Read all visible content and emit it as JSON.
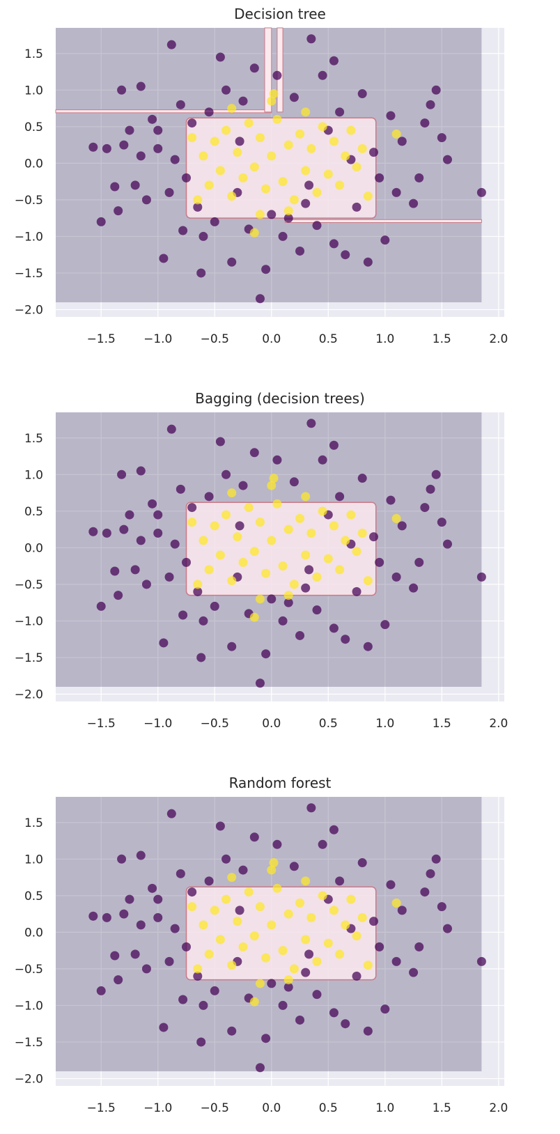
{
  "chart_data": [
    {
      "type": "scatter",
      "title": "Decision tree",
      "xlim": [
        -1.9,
        2.05
      ],
      "ylim": [
        -2.1,
        1.85
      ],
      "x_ticks": [
        "-1.5",
        "-1.0",
        "-0.5",
        "0.0",
        "0.5",
        "1.0",
        "1.5",
        "2.0"
      ],
      "y_ticks": [
        "1.5",
        "1.0",
        "0.5",
        "0.0",
        "-0.5",
        "-1.0",
        "-1.5",
        "-2.0"
      ],
      "grid": true,
      "background_region": {
        "x": [
          -1.9,
          1.85
        ],
        "y": [
          -1.9,
          1.85
        ],
        "color": "#3b2d5c"
      },
      "decision_boundary": {
        "x": [
          -0.75,
          0.92
        ],
        "y": [
          -0.75,
          0.62
        ],
        "fill": "#fbe9ee",
        "edge": "#c97a86"
      }
    },
    {
      "type": "scatter",
      "title": "Bagging (decision trees)",
      "xlim": [
        -1.9,
        2.05
      ],
      "ylim": [
        -2.1,
        1.85
      ],
      "x_ticks": [
        "-1.5",
        "-1.0",
        "-0.5",
        "0.0",
        "0.5",
        "1.0",
        "1.5",
        "2.0"
      ],
      "y_ticks": [
        "1.5",
        "1.0",
        "0.5",
        "0.0",
        "-0.5",
        "-1.0",
        "-1.5",
        "-2.0"
      ],
      "grid": true,
      "background_region": {
        "x": [
          -1.9,
          1.85
        ],
        "y": [
          -1.9,
          1.85
        ],
        "color": "#3b2d5c"
      },
      "decision_boundary": {
        "x": [
          -0.75,
          0.92
        ],
        "y": [
          -0.65,
          0.62
        ],
        "fill": "#fbe9ee",
        "edge": "#c97a86"
      }
    },
    {
      "type": "scatter",
      "title": "Random forest",
      "xlim": [
        -1.9,
        2.05
      ],
      "ylim": [
        -2.1,
        1.85
      ],
      "x_ticks": [
        "-1.5",
        "-1.0",
        "-0.5",
        "0.0",
        "0.5",
        "1.0",
        "1.5",
        "2.0"
      ],
      "y_ticks": [
        "1.5",
        "1.0",
        "0.5",
        "0.0",
        "-0.5",
        "-1.0",
        "-1.5",
        "-2.0"
      ],
      "grid": true,
      "background_region": {
        "x": [
          -1.9,
          1.85
        ],
        "y": [
          -1.9,
          1.85
        ],
        "color": "#3b2d5c"
      },
      "decision_boundary": {
        "x": [
          -0.75,
          0.92
        ],
        "y": [
          -0.65,
          0.62
        ],
        "fill": "#fbe9ee",
        "edge": "#c97a86"
      }
    }
  ],
  "points": {
    "class_0_color": "#440154",
    "class_1_color": "#fde725",
    "class_0": [
      [
        -1.5,
        -0.8
      ],
      [
        -1.45,
        0.2
      ],
      [
        -1.35,
        -0.65
      ],
      [
        -1.3,
        0.25
      ],
      [
        -1.25,
        0.45
      ],
      [
        -1.2,
        -0.3
      ],
      [
        -1.15,
        0.1
      ],
      [
        -1.1,
        -0.5
      ],
      [
        -1.05,
        0.6
      ],
      [
        -1.0,
        0.2
      ],
      [
        -0.95,
        -1.3
      ],
      [
        -0.9,
        -0.4
      ],
      [
        -0.85,
        0.05
      ],
      [
        -0.8,
        0.8
      ],
      [
        -0.75,
        -0.2
      ],
      [
        -0.7,
        0.55
      ],
      [
        -0.65,
        -0.6
      ],
      [
        -0.6,
        -1.0
      ],
      [
        -0.55,
        0.7
      ],
      [
        -0.5,
        -0.8
      ],
      [
        -0.45,
        1.45
      ],
      [
        -0.4,
        1.0
      ],
      [
        -0.35,
        -1.35
      ],
      [
        -0.3,
        -0.4
      ],
      [
        -0.25,
        0.85
      ],
      [
        -0.2,
        -0.9
      ],
      [
        -0.15,
        1.3
      ],
      [
        -0.1,
        -1.85
      ],
      [
        -0.05,
        -1.45
      ],
      [
        0.0,
        -0.7
      ],
      [
        0.05,
        1.2
      ],
      [
        0.1,
        -1.0
      ],
      [
        0.15,
        -0.75
      ],
      [
        0.2,
        0.9
      ],
      [
        0.25,
        -1.2
      ],
      [
        0.3,
        -0.55
      ],
      [
        0.35,
        1.7
      ],
      [
        0.4,
        -0.85
      ],
      [
        0.45,
        1.2
      ],
      [
        0.5,
        0.45
      ],
      [
        0.55,
        -1.1
      ],
      [
        0.6,
        0.7
      ],
      [
        0.65,
        -1.25
      ],
      [
        0.7,
        0.05
      ],
      [
        0.75,
        -0.6
      ],
      [
        0.8,
        0.95
      ],
      [
        0.85,
        -1.35
      ],
      [
        0.9,
        0.15
      ],
      [
        1.0,
        -1.05
      ],
      [
        1.05,
        0.65
      ],
      [
        1.1,
        -0.4
      ],
      [
        1.15,
        0.3
      ],
      [
        1.25,
        -0.55
      ],
      [
        1.3,
        -0.2
      ],
      [
        1.35,
        0.55
      ],
      [
        1.4,
        0.8
      ],
      [
        1.45,
        1.0
      ],
      [
        1.5,
        0.35
      ],
      [
        1.55,
        0.05
      ],
      [
        1.85,
        -0.4
      ],
      [
        -1.57,
        0.22
      ],
      [
        -1.38,
        -0.32
      ],
      [
        -1.32,
        1.0
      ],
      [
        -1.15,
        1.05
      ],
      [
        -0.88,
        1.62
      ],
      [
        -0.62,
        -1.5
      ],
      [
        -0.28,
        0.3
      ],
      [
        0.33,
        -0.3
      ],
      [
        0.55,
        1.4
      ],
      [
        -0.78,
        -0.92
      ],
      [
        0.95,
        -0.2
      ],
      [
        -1.0,
        0.45
      ]
    ],
    "class_1": [
      [
        -0.6,
        0.1
      ],
      [
        -0.55,
        -0.3
      ],
      [
        -0.5,
        0.3
      ],
      [
        -0.45,
        -0.1
      ],
      [
        -0.4,
        0.45
      ],
      [
        -0.35,
        -0.45
      ],
      [
        -0.3,
        0.15
      ],
      [
        -0.25,
        -0.2
      ],
      [
        -0.2,
        0.55
      ],
      [
        -0.15,
        -0.05
      ],
      [
        -0.1,
        0.35
      ],
      [
        -0.05,
        -0.35
      ],
      [
        0.0,
        0.1
      ],
      [
        0.05,
        0.6
      ],
      [
        0.1,
        -0.25
      ],
      [
        0.15,
        0.25
      ],
      [
        0.2,
        -0.5
      ],
      [
        0.25,
        0.4
      ],
      [
        0.3,
        -0.1
      ],
      [
        0.35,
        0.2
      ],
      [
        0.4,
        -0.4
      ],
      [
        0.45,
        0.5
      ],
      [
        0.5,
        -0.15
      ],
      [
        0.55,
        0.3
      ],
      [
        0.6,
        -0.3
      ],
      [
        0.65,
        0.1
      ],
      [
        0.7,
        0.45
      ],
      [
        0.75,
        -0.05
      ],
      [
        0.8,
        0.2
      ],
      [
        -0.65,
        -0.5
      ],
      [
        -0.7,
        0.35
      ],
      [
        0.85,
        -0.45
      ],
      [
        0.0,
        0.85
      ],
      [
        -0.1,
        -0.7
      ],
      [
        0.15,
        -0.65
      ],
      [
        0.02,
        0.95
      ],
      [
        -0.35,
        0.75
      ],
      [
        0.3,
        0.7
      ],
      [
        1.1,
        0.4
      ],
      [
        -0.15,
        -0.95
      ]
    ]
  }
}
